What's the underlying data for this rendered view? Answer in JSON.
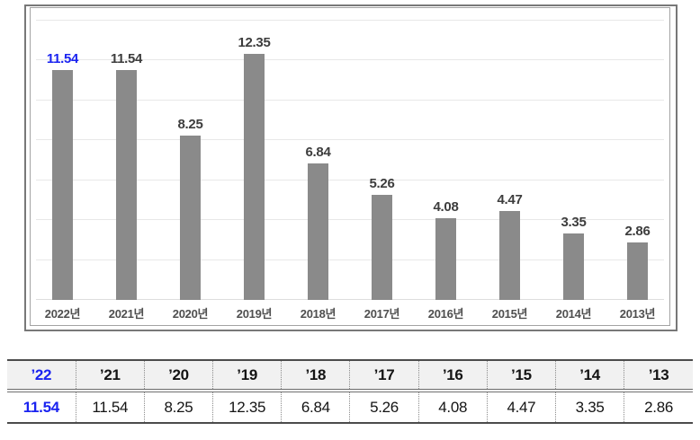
{
  "colors": {
    "highlight_blue": "#1a23f0",
    "bar_gray": "#8a8a8a"
  },
  "chart_data": {
    "type": "bar",
    "title": "",
    "xlabel": "",
    "ylabel": "",
    "categories": [
      "2022년",
      "2021년",
      "2020년",
      "2019년",
      "2018년",
      "2017년",
      "2016년",
      "2015년",
      "2014년",
      "2013년"
    ],
    "values": [
      11.54,
      11.54,
      8.25,
      12.35,
      6.84,
      5.26,
      4.08,
      4.47,
      3.35,
      2.86
    ],
    "value_labels_shown": true,
    "highlight_index": 0,
    "ylim": [
      0,
      14
    ],
    "gridline_step": 2,
    "grid": true,
    "legend": false,
    "y_tick_labels_shown": false
  },
  "table": {
    "headers": [
      "’22",
      "’21",
      "’20",
      "’19",
      "’18",
      "’17",
      "’16",
      "’15",
      "’14",
      "’13"
    ],
    "values": [
      "11.54",
      "11.54",
      "8.25",
      "12.35",
      "6.84",
      "5.26",
      "4.08",
      "4.47",
      "3.35",
      "2.86"
    ],
    "highlight_column": 0
  }
}
